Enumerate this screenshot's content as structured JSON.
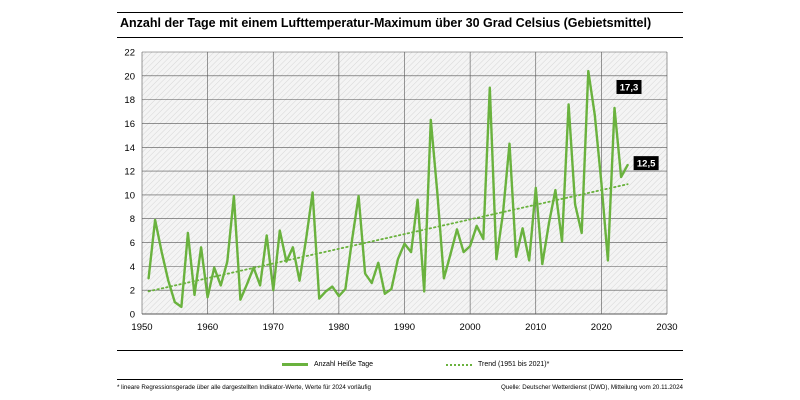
{
  "title": "Anzahl der Tage mit einem Lufttemperatur-Maximum über 30 Grad Celsius (Gebietsmittel)",
  "footnote": "* lineare Regressionsgerade über alle dargestellten Indikator-Werte, Werte für 2024 vorläufig",
  "source": "Quelle: Deutscher Wetterdienst (DWD), Mitteilung vom 20.11.2024",
  "colors": {
    "series": "#6ab23e",
    "label_bg": "#000000",
    "label_fg": "#ffffff"
  },
  "chart_data": {
    "type": "line",
    "title": "",
    "xlabel": "",
    "ylabel": "",
    "xlim": [
      1950,
      2030
    ],
    "ylim": [
      0,
      22
    ],
    "x_ticks": [
      1950,
      1960,
      1970,
      1980,
      1990,
      2000,
      2010,
      2020,
      2030
    ],
    "y_ticks": [
      0,
      2,
      4,
      6,
      8,
      10,
      12,
      14,
      16,
      18,
      20,
      22
    ],
    "grid": true,
    "legend_position": "bottom",
    "series": [
      {
        "name": "Anzahl Heiße Tage",
        "style": "solid",
        "x": [
          1951,
          1952,
          1953,
          1954,
          1955,
          1956,
          1957,
          1958,
          1959,
          1960,
          1961,
          1962,
          1963,
          1964,
          1965,
          1966,
          1967,
          1968,
          1969,
          1970,
          1971,
          1972,
          1973,
          1974,
          1975,
          1976,
          1977,
          1978,
          1979,
          1980,
          1981,
          1982,
          1983,
          1984,
          1985,
          1986,
          1987,
          1988,
          1989,
          1990,
          1991,
          1992,
          1993,
          1994,
          1995,
          1996,
          1997,
          1998,
          1999,
          2000,
          2001,
          2002,
          2003,
          2004,
          2005,
          2006,
          2007,
          2008,
          2009,
          2010,
          2011,
          2012,
          2013,
          2014,
          2015,
          2016,
          2017,
          2018,
          2019,
          2020,
          2021,
          2022,
          2023,
          2024
        ],
        "y": [
          3.0,
          7.9,
          5.2,
          2.8,
          1.0,
          0.6,
          6.8,
          1.6,
          5.6,
          1.4,
          3.9,
          2.4,
          4.4,
          9.9,
          1.2,
          2.5,
          3.9,
          2.4,
          6.6,
          2.0,
          7.0,
          4.4,
          5.6,
          2.8,
          6.3,
          10.2,
          1.3,
          1.9,
          2.3,
          1.5,
          2.1,
          6.2,
          9.9,
          3.4,
          2.6,
          4.3,
          1.7,
          2.1,
          4.6,
          5.9,
          5.2,
          9.6,
          1.9,
          16.3,
          10.2,
          3.0,
          5.0,
          7.1,
          5.2,
          5.7,
          7.4,
          6.3,
          19.0,
          4.6,
          8.4,
          14.3,
          4.8,
          7.2,
          4.5,
          10.6,
          4.2,
          7.6,
          10.4,
          6.1,
          17.6,
          9.2,
          6.8,
          20.4,
          16.7,
          11.0,
          4.5,
          17.3,
          11.5,
          12.5
        ]
      },
      {
        "name": "Trend (1951 bis 2021)*",
        "style": "dotted",
        "x": [
          1951,
          2024
        ],
        "y": [
          1.9,
          10.9
        ]
      }
    ],
    "annotations": [
      {
        "x": 2022,
        "y": 17.3,
        "text": "17,3"
      },
      {
        "x": 2024,
        "y": 12.5,
        "text": "12,5"
      }
    ]
  }
}
